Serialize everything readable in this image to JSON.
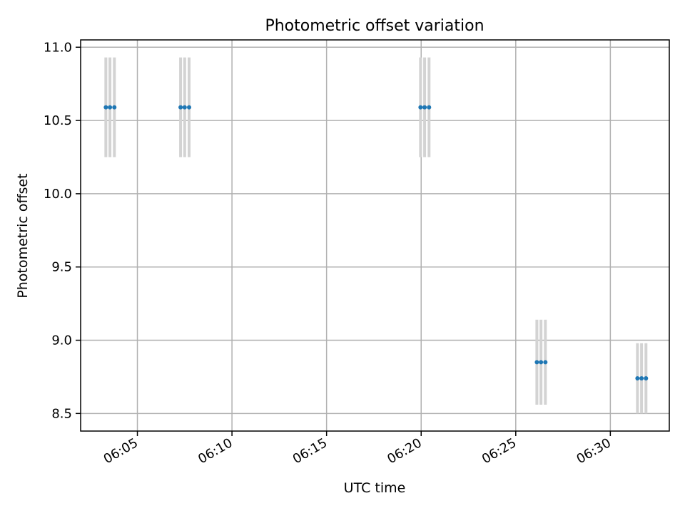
{
  "chart_data": {
    "type": "scatter",
    "title": "Photometric offset variation",
    "xlabel": "UTC time",
    "ylabel": "Photometric offset",
    "x_ticks": [
      "06:05",
      "06:10",
      "06:15",
      "06:20",
      "06:25",
      "06:30"
    ],
    "y_ticks": [
      "8.5",
      "9.0",
      "9.5",
      "10.0",
      "10.5",
      "11.0"
    ],
    "xlim": [
      "06:02:00",
      "06:33:07"
    ],
    "ylim": [
      8.38,
      11.05
    ],
    "grid": true,
    "errorbar_color": "#d3d3d3",
    "marker_color": "#1f77b4",
    "points": [
      {
        "x": "06:03:20",
        "y": 10.59,
        "yerr": 0.34
      },
      {
        "x": "06:03:33",
        "y": 10.59,
        "yerr": 0.34
      },
      {
        "x": "06:03:47",
        "y": 10.59,
        "yerr": 0.34
      },
      {
        "x": "06:07:17",
        "y": 10.59,
        "yerr": 0.34
      },
      {
        "x": "06:07:30",
        "y": 10.59,
        "yerr": 0.34
      },
      {
        "x": "06:07:44",
        "y": 10.59,
        "yerr": 0.34
      },
      {
        "x": "06:19:58",
        "y": 10.59,
        "yerr": 0.34
      },
      {
        "x": "06:20:11",
        "y": 10.59,
        "yerr": 0.34
      },
      {
        "x": "06:20:25",
        "y": 10.59,
        "yerr": 0.34
      },
      {
        "x": "06:26:07",
        "y": 8.85,
        "yerr": 0.29
      },
      {
        "x": "06:26:20",
        "y": 8.85,
        "yerr": 0.29
      },
      {
        "x": "06:26:34",
        "y": 8.85,
        "yerr": 0.29
      },
      {
        "x": "06:31:26",
        "y": 8.74,
        "yerr": 0.24
      },
      {
        "x": "06:31:39",
        "y": 8.74,
        "yerr": 0.24
      },
      {
        "x": "06:31:53",
        "y": 8.74,
        "yerr": 0.24
      }
    ]
  }
}
